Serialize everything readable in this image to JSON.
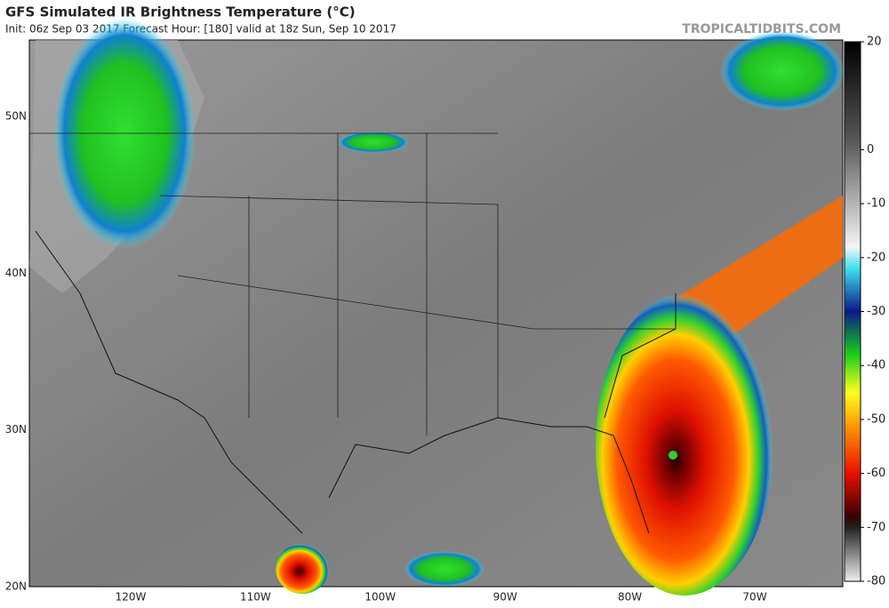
{
  "header": {
    "title": "GFS Simulated IR Brightness Temperature (°C)",
    "subtitle": "Init: 06z Sep 03 2017   Forecast Hour: [180]   valid at 18z Sun, Sep 10 2017",
    "credit": "TROPICALTIDBITS.COM"
  },
  "map": {
    "latitude_labels": [
      "50N",
      "40N",
      "30N",
      "20N"
    ],
    "longitude_labels": [
      "120W",
      "110W",
      "100W",
      "90W",
      "80W",
      "70W"
    ]
  },
  "colorbar": {
    "range": [
      20,
      -80
    ],
    "ticks": [
      20,
      0,
      -10,
      -20,
      -30,
      -40,
      -50,
      -60,
      -70,
      -80
    ]
  }
}
